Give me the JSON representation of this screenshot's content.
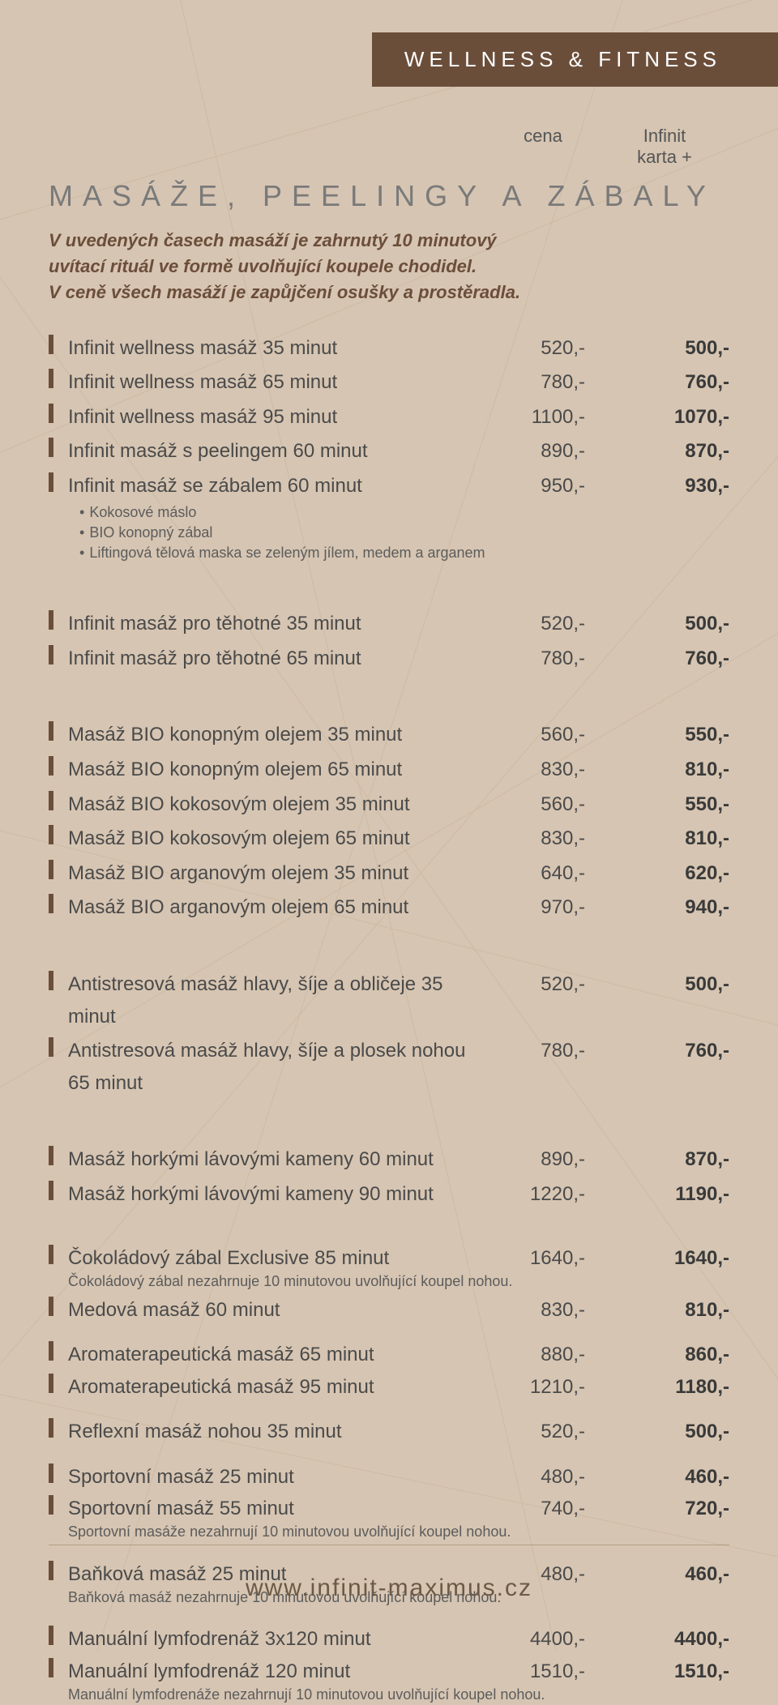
{
  "header": "WELLNESS & FITNESS",
  "colHeaders": {
    "price": "cena",
    "plus1": "Infinit",
    "plus2": "karta +"
  },
  "sectionTitle": "MASÁŽE, PEELINGY A ZÁBALY",
  "intro1": "V uvedených časech masáží je zahrnutý 10 minutový",
  "intro2": "uvítací rituál ve formě uvolňující koupele chodidel.",
  "intro3": "V ceně všech masáží je zapůjčení osušky a prostěradla.",
  "group1": [
    {
      "name": "Infinit wellness masáž 35 minut",
      "price": "520,-",
      "plus": "500,-"
    },
    {
      "name": "Infinit wellness masáž 65 minut",
      "price": "780,-",
      "plus": "760,-"
    },
    {
      "name": "Infinit wellness masáž 95 minut",
      "price": "1100,-",
      "plus": "1070,-"
    },
    {
      "name": "Infinit masáž s peelingem 60 minut",
      "price": "890,-",
      "plus": "870,-"
    },
    {
      "name": "Infinit masáž se zábalem 60 minut",
      "price": "950,-",
      "plus": "930,-"
    }
  ],
  "group1_subs": [
    "Kokosové máslo",
    "BIO konopný zábal",
    "Liftingová tělová maska se zeleným jílem, medem a arganem"
  ],
  "group2": [
    {
      "name": "Infinit masáž pro těhotné 35 minut",
      "price": "520,-",
      "plus": "500,-"
    },
    {
      "name": "Infinit masáž pro těhotné 65 minut",
      "price": "780,-",
      "plus": "760,-"
    }
  ],
  "group3": [
    {
      "name": "Masáž BIO konopným olejem 35 minut",
      "price": "560,-",
      "plus": "550,-"
    },
    {
      "name": "Masáž BIO konopným olejem 65 minut",
      "price": "830,-",
      "plus": "810,-"
    },
    {
      "name": "Masáž BIO kokosovým olejem 35 minut",
      "price": "560,-",
      "plus": "550,-"
    },
    {
      "name": "Masáž BIO kokosovým olejem 65 minut",
      "price": "830,-",
      "plus": "810,-"
    },
    {
      "name": "Masáž BIO arganovým olejem 35 minut",
      "price": "640,-",
      "plus": "620,-"
    },
    {
      "name": "Masáž BIO arganovým olejem 65 minut",
      "price": "970,-",
      "plus": "940,-"
    }
  ],
  "group4": [
    {
      "name": "Antistresová masáž hlavy, šíje a obličeje 35 minut",
      "price": "520,-",
      "plus": "500,-"
    },
    {
      "name": "Antistresová masáž hlavy, šíje a plosek nohou 65 minut",
      "price": "780,-",
      "plus": "760,-"
    }
  ],
  "group5": [
    {
      "name": "Masáž horkými lávovými kameny 60 minut",
      "price": "890,-",
      "plus": "870,-"
    },
    {
      "name": "Masáž horkými lávovými kameny 90 minut",
      "price": "1220,-",
      "plus": "1190,-"
    }
  ],
  "group6": [
    {
      "name": "Čokoládový zábal Exclusive 85 minut",
      "price": "1640,-",
      "plus": "1640,-",
      "note": "Čokoládový zábal nezahrnuje 10 minutovou uvolňující koupel nohou."
    },
    {
      "name": "Medová masáž 60 minut",
      "price": "830,-",
      "plus": "810,-"
    }
  ],
  "group7": [
    {
      "name": "Aromaterapeutická masáž 65 minut",
      "price": "880,-",
      "plus": "860,-"
    },
    {
      "name": "Aromaterapeutická masáž 95 minut",
      "price": "1210,-",
      "plus": "1180,-"
    }
  ],
  "group8": [
    {
      "name": "Reflexní masáž nohou 35 minut",
      "price": "520,-",
      "plus": "500,-"
    }
  ],
  "group9": [
    {
      "name": "Sportovní masáž 25 minut",
      "price": "480,-",
      "plus": "460,-"
    },
    {
      "name": "Sportovní masáž 55 minut",
      "price": "740,-",
      "plus": "720,-",
      "note": "Sportovní masáže nezahrnují 10 minutovou uvolňující koupel nohou."
    }
  ],
  "group10": [
    {
      "name": "Baňková masáž 25 minut",
      "price": "480,-",
      "plus": "460,-",
      "note": "Baňková masáž nezahrnuje 10 minutovou uvolňující koupel nohou."
    }
  ],
  "group11": [
    {
      "name": "Manuální lymfodrenáž 3x120 minut",
      "price": "4400,-",
      "plus": "4400,-"
    },
    {
      "name": "Manuální lymfodrenáž 120 minut",
      "price": "1510,-",
      "plus": "1510,-",
      "note": "Manuální lymfodrenáže nezahrnují 10 minutovou uvolňující koupel nohou."
    }
  ],
  "footer": "www.infinit-maximus.cz",
  "colors": {
    "background": "#d6c5b2",
    "brown": "#6b4e3a",
    "text": "#4a4a4a",
    "line": "#bba889"
  }
}
